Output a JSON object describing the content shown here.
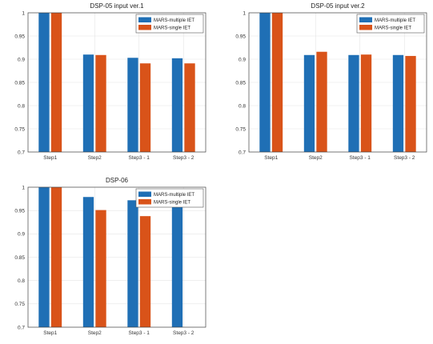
{
  "chart_data": [
    {
      "type": "bar",
      "title": "DSP-05 input ver.1",
      "categories": [
        "Step1",
        "Step2",
        "Step3 - 1",
        "Step3 - 2"
      ],
      "series": [
        {
          "name": "MARS-multiple IET",
          "color": "#1f6fb5",
          "values": [
            1.0,
            0.91,
            0.903,
            0.902
          ]
        },
        {
          "name": "MARS-single IET",
          "color": "#d95319",
          "values": [
            1.0,
            0.909,
            0.891,
            0.891
          ]
        }
      ],
      "ylim": [
        0.7,
        1.0
      ],
      "yticks": [
        "0.7",
        "0.75",
        "0.8",
        "0.85",
        "0.9",
        "0.95",
        "1"
      ],
      "grid": true,
      "legend": "top-right"
    },
    {
      "type": "bar",
      "title": "DSP-05 input ver.2",
      "categories": [
        "Step1",
        "Step2",
        "Step3 - 1",
        "Step3 - 2"
      ],
      "series": [
        {
          "name": "MARS-multiple IET",
          "color": "#1f6fb5",
          "values": [
            1.0,
            0.909,
            0.909,
            0.909
          ]
        },
        {
          "name": "MARS-single IET",
          "color": "#d95319",
          "values": [
            1.0,
            0.916,
            0.91,
            0.907
          ]
        }
      ],
      "ylim": [
        0.7,
        1.0
      ],
      "yticks": [
        "0.7",
        "0.75",
        "0.8",
        "0.85",
        "0.9",
        "0.95",
        "1"
      ],
      "grid": true,
      "legend": "top-right"
    },
    {
      "type": "bar",
      "title": "DSP-06",
      "categories": [
        "Step1",
        "Step2",
        "Step3 - 1",
        "Step3 - 2"
      ],
      "series": [
        {
          "name": "MARS-multiple IET",
          "color": "#1f6fb5",
          "values": [
            1.0,
            0.979,
            0.972,
            0.965
          ]
        },
        {
          "name": "MARS-single IET",
          "color": "#d95319",
          "values": [
            1.0,
            0.951,
            0.938,
            null
          ]
        }
      ],
      "ylim": [
        0.7,
        1.0
      ],
      "yticks": [
        "0.7",
        "0.75",
        "0.8",
        "0.85",
        "0.9",
        "0.95",
        "1"
      ],
      "grid": true,
      "legend": "top-right"
    }
  ]
}
